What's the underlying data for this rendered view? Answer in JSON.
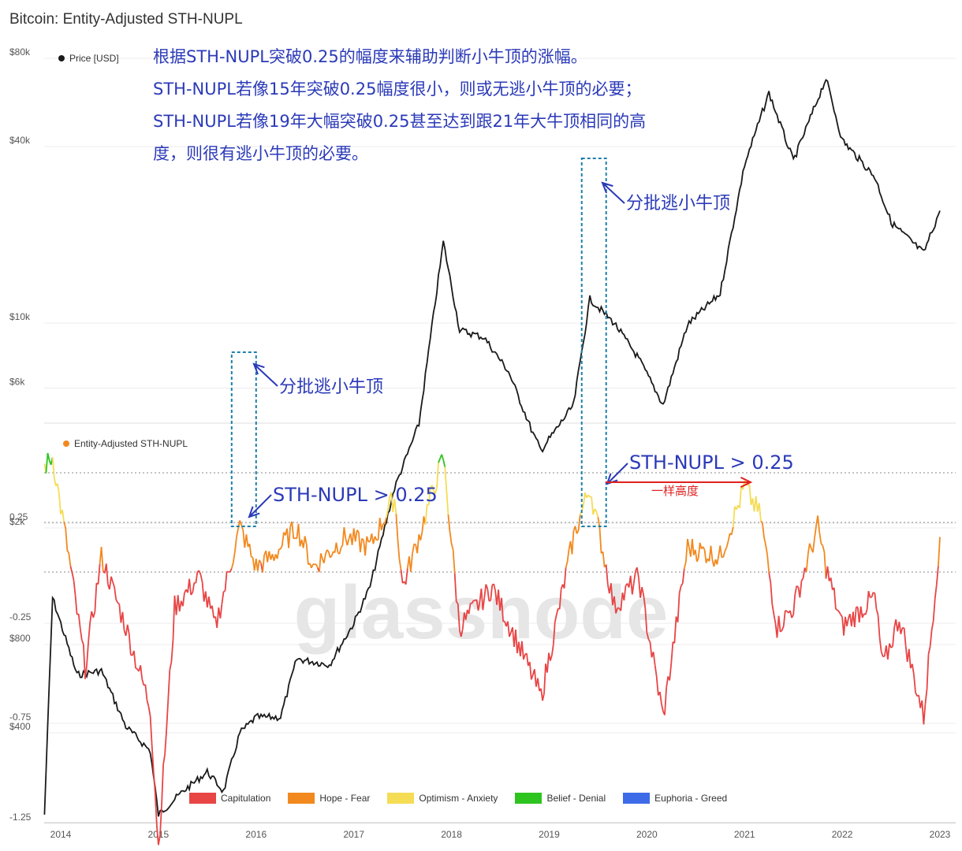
{
  "title": "Bitcoin: Entity-Adjusted STH-NUPL",
  "annotations": {
    "lines": [
      "根据STH-NUPL突破0.25的幅度来辅助判断小牛顶的涨幅。",
      "STH-NUPL若像15年突破0.25幅度很小，则或无逃小牛顶的必要；",
      "STH-NUPL若像19年大幅突破0.25甚至达到跟21年大牛顶相同的高",
      "度，则很有逃小牛顶的必要。"
    ],
    "callout_2015_price": "分批逃小牛顶",
    "callout_2019_price": "分批逃小牛顶",
    "callout_2015_nupl": "STH-NUPL > 0.25",
    "callout_2019_nupl": "STH-NUPL > 0.25",
    "same_height": "一样高度"
  },
  "watermark": "glassnode",
  "colors": {
    "price": "#1a1a1a",
    "capitulation": "#e84545",
    "hope_fear": "#f2891f",
    "optimism_anxiety": "#f5dc55",
    "belief_denial": "#2ec41f",
    "euphoria_greed": "#3d6be8",
    "annotation": "#2b3ab8",
    "box": "#1d7fa8",
    "arrow_red": "#e02020"
  },
  "chart_data": [
    {
      "type": "line",
      "name": "Price [USD]",
      "yscale": "log",
      "yticks": [
        "$80k",
        "$40k",
        "$10k",
        "$6k",
        "$2k",
        "$800",
        "$400"
      ],
      "ytick_values": [
        80000,
        40000,
        10000,
        6000,
        2000,
        800,
        400
      ],
      "x": [
        "2013-11",
        "2013-12",
        "2014-03",
        "2014-06",
        "2014-09",
        "2014-12",
        "2015-01",
        "2015-04",
        "2015-07",
        "2015-09",
        "2015-11",
        "2016-01",
        "2016-04",
        "2016-06",
        "2016-10",
        "2017-01",
        "2017-03",
        "2017-06",
        "2017-09",
        "2017-12",
        "2018-02",
        "2018-05",
        "2018-08",
        "2018-11",
        "2018-12",
        "2019-04",
        "2019-06",
        "2019-09",
        "2019-12",
        "2020-03",
        "2020-06",
        "2020-10",
        "2021-01",
        "2021-04",
        "2021-07",
        "2021-11",
        "2022-01",
        "2022-05",
        "2022-07",
        "2022-11",
        "2023-01"
      ],
      "y": [
        200,
        1100,
        600,
        620,
        400,
        330,
        200,
        240,
        280,
        240,
        380,
        430,
        430,
        680,
        650,
        900,
        1200,
        2600,
        4300,
        18000,
        9000,
        8500,
        6500,
        4000,
        3500,
        5000,
        11500,
        9500,
        7200,
        5000,
        9400,
        12000,
        33000,
        58000,
        34000,
        65000,
        40000,
        30000,
        21000,
        16500,
        23000
      ]
    },
    {
      "type": "line",
      "name": "Entity-Adjusted STH-NUPL",
      "yticks": [
        "0.25",
        "-0.25",
        "-0.75",
        "-1.25"
      ],
      "ytick_values": [
        0.25,
        -0.25,
        -0.75,
        -1.25
      ],
      "xticks": [
        "2014",
        "2015",
        "2016",
        "2017",
        "2018",
        "2019",
        "2020",
        "2021",
        "2022",
        "2023"
      ],
      "legend": [
        "Capitulation",
        "Hope - Fear",
        "Optimism - Anxiety",
        "Belief - Denial",
        "Euphoria - Greed"
      ],
      "x": [
        "2013-11",
        "2013-12",
        "2014-02",
        "2014-04",
        "2014-06",
        "2014-09",
        "2014-12",
        "2015-01",
        "2015-03",
        "2015-06",
        "2015-08",
        "2015-11",
        "2016-01",
        "2016-03",
        "2016-06",
        "2016-08",
        "2016-12",
        "2017-03",
        "2017-06",
        "2017-07",
        "2017-09",
        "2017-12",
        "2018-02",
        "2018-06",
        "2018-11",
        "2018-12",
        "2019-04",
        "2019-06",
        "2019-09",
        "2019-12",
        "2020-03",
        "2020-06",
        "2020-10",
        "2021-01",
        "2021-03",
        "2021-05",
        "2021-07",
        "2021-10",
        "2021-11",
        "2022-01",
        "2022-05",
        "2022-06",
        "2022-08",
        "2022-11",
        "2023-01"
      ],
      "y": [
        0.5,
        0.55,
        0.05,
        -0.5,
        0.05,
        -0.3,
        -0.7,
        -1.4,
        -0.2,
        -0.05,
        -0.3,
        0.2,
        0.0,
        0.05,
        0.2,
        0.0,
        0.15,
        0.1,
        0.35,
        -0.1,
        0.15,
        0.55,
        -0.3,
        -0.1,
        -0.55,
        -0.65,
        0.15,
        0.4,
        -0.2,
        -0.05,
        -0.75,
        0.1,
        0.05,
        0.4,
        0.25,
        -0.3,
        -0.2,
        0.2,
        0.0,
        -0.3,
        -0.15,
        -0.5,
        -0.25,
        -0.75,
        0.15
      ]
    }
  ]
}
